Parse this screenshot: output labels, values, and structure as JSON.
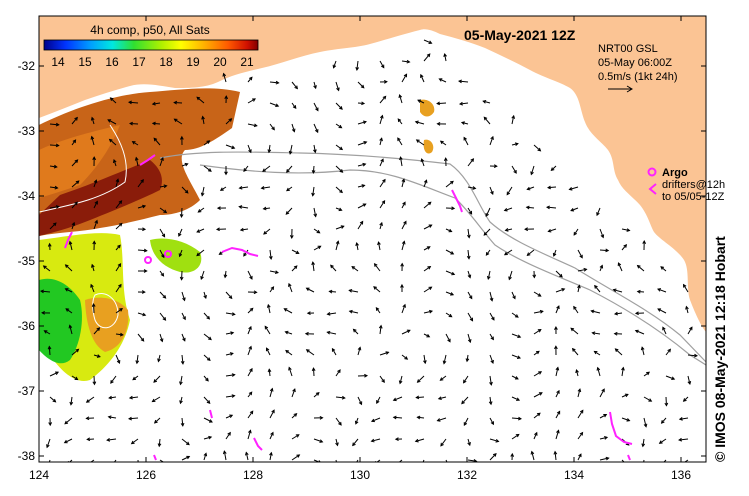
{
  "colorbar": {
    "title": "4h comp, p50, All Sats",
    "ticks": [
      "14",
      "15",
      "16",
      "17",
      "18",
      "19",
      "20",
      "21"
    ]
  },
  "header": {
    "date": "05-May-2021 12Z"
  },
  "current_legend": {
    "source": "NRT00 GSL",
    "time": "05-May 06:00Z",
    "scale": "0.5m/s (1kt 24h)"
  },
  "argo_legend": {
    "argo_label": "Argo",
    "drifters_line1": "drifters@12h",
    "drifters_line2": "to 05/05-12Z"
  },
  "axes": {
    "x_ticks": [
      "124",
      "126",
      "128",
      "130",
      "132",
      "134",
      "136"
    ],
    "y_ticks": [
      "-32",
      "-33",
      "-34",
      "-35",
      "-36",
      "-37",
      "-38"
    ]
  },
  "credit": "© IMOS 08-May-2021 12:18 Hobart",
  "colors": {
    "land": "#fbc494",
    "ocean": "#ffffff",
    "argo": "#ff22ff",
    "shelf_line": "#a0a0a0"
  }
}
